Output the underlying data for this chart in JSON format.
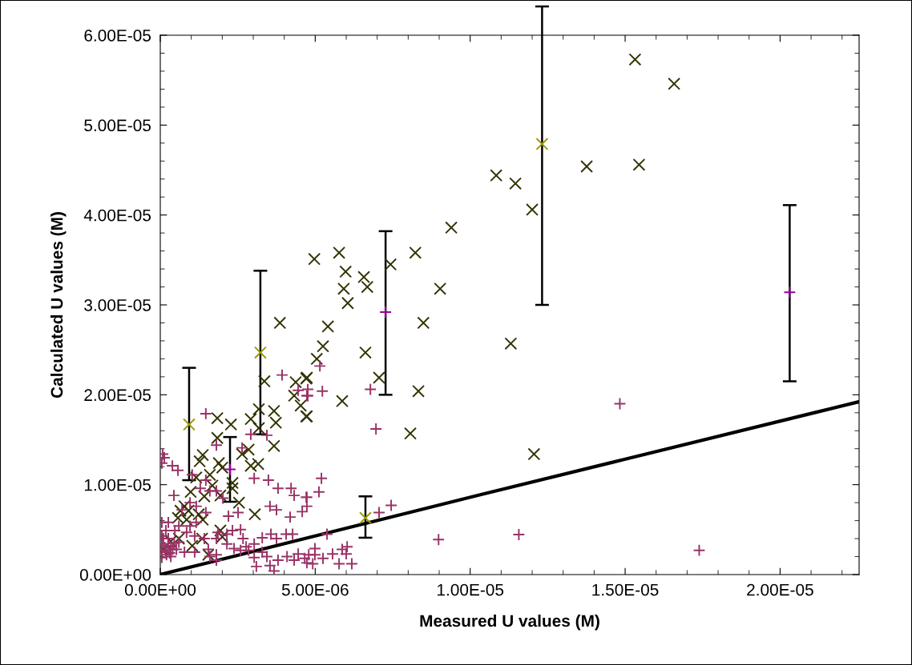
{
  "chart_data": {
    "type": "scatter",
    "xlabel": "Measured U values (M)",
    "ylabel": "Calculated U values (M)",
    "xlim": [
      0,
      2.255e-05
    ],
    "ylim": [
      0,
      6e-05
    ],
    "xticks": [
      {
        "value": 0,
        "label": "0.00E+00"
      },
      {
        "value": 5e-06,
        "label": "5.00E-06"
      },
      {
        "value": 1e-05,
        "label": "1.00E-05"
      },
      {
        "value": 1.5e-05,
        "label": "1.50E-05"
      },
      {
        "value": 2e-05,
        "label": "2.00E-05"
      }
    ],
    "yticks": [
      {
        "value": 0,
        "label": "0.00E+00"
      },
      {
        "value": 1e-05,
        "label": "1.00E-05"
      },
      {
        "value": 2e-05,
        "label": "2.00E-05"
      },
      {
        "value": 3e-05,
        "label": "3.00E-05"
      },
      {
        "value": 4e-05,
        "label": "4.00E-05"
      },
      {
        "value": 5e-05,
        "label": "5.00E-05"
      },
      {
        "value": 6e-05,
        "label": "6.00E-05"
      }
    ],
    "grid": false,
    "series": [
      {
        "color": "#333300",
        "marker": "x",
        "x": [
          1.532e-05,
          1.658e-05,
          1.376e-05,
          1.545e-05,
          1.084e-05,
          1.146e-05,
          1.2e-05,
          1.131e-05,
          1.206e-05,
          4.97e-06,
          5.77e-06,
          5.98e-06,
          5.92e-06,
          6.05e-06,
          6.57e-06,
          6.68e-06,
          7.43e-06,
          8.23e-06,
          9.39e-06,
          9.03e-06,
          8.49e-06,
          5.41e-06,
          5.25e-06,
          5.05e-06,
          6.62e-06,
          7.06e-06,
          4.73e-06,
          8.33e-06,
          5.87e-06,
          4.73e-06,
          8.07e-06,
          3.86e-06,
          3.36e-06,
          4.37e-06,
          4.71e-06,
          4.32e-06,
          4.53e-06,
          4.71e-06,
          3.18e-06,
          3.67e-06,
          1.84e-06,
          2.28e-06,
          2.92e-06,
          3.73e-06,
          3.18e-06,
          1.84e-06,
          3.67e-06,
          2.85e-06,
          2.64e-06,
          1.37e-06,
          1.27e-06,
          1.89e-06,
          2e-06,
          2.92e-06,
          3.16e-06,
          1.6e-06,
          1.16e-06,
          1.68e-06,
          2.33e-06,
          2.33e-06,
          9.8e-07,
          1.42e-06,
          1.94e-06,
          2.54e-06,
          7.8e-07,
          9.1e-07,
          1.24e-06,
          6.5e-07,
          3.05e-06,
          5.7e-07,
          8.5e-07,
          1.37e-06,
          1.94e-06,
          2e-06,
          1.35e-06,
          6e-07,
          3.4e-07,
          1.55e-06,
          1.03e-06,
          8e-08
        ],
        "values": [
          5.73e-05,
          5.46e-05,
          4.54e-05,
          4.56e-05,
          4.44e-05,
          4.35e-05,
          4.06e-05,
          2.57e-05,
          1.34e-05,
          3.51e-05,
          3.58e-05,
          3.37e-05,
          3.18e-05,
          3.02e-05,
          3.31e-05,
          3.2e-05,
          3.45e-05,
          3.58e-05,
          3.86e-05,
          3.18e-05,
          2.8e-05,
          2.76e-05,
          2.54e-05,
          2.4e-05,
          2.47e-05,
          2.19e-05,
          2.19e-05,
          2.04e-05,
          1.93e-05,
          1.76e-05,
          1.57e-05,
          2.8e-05,
          2.15e-05,
          2.14e-05,
          2.18e-05,
          1.99e-05,
          1.88e-05,
          1.76e-05,
          1.84e-05,
          1.82e-05,
          1.74e-05,
          1.67e-05,
          1.73e-05,
          1.69e-05,
          1.63e-05,
          1.52e-05,
          1.43e-05,
          1.39e-05,
          1.34e-05,
          1.33e-05,
          1.26e-05,
          1.24e-05,
          1.19e-05,
          1.21e-05,
          1.23e-05,
          1.11e-05,
          1.08e-05,
          9.9e-06,
          1.02e-05,
          9.6e-06,
          9.2e-06,
          8.7e-06,
          8.8e-06,
          8e-06,
          7.6e-06,
          7.1e-06,
          6.7e-06,
          7.1e-06,
          6.7e-06,
          6.3e-06,
          6.1e-06,
          6.1e-06,
          4.9e-06,
          4.2e-06,
          4e-06,
          4e-06,
          3.7e-06,
          2.2e-06,
          3.2e-06,
          2.8e-06
        ]
      },
      {
        "color": "#993366",
        "marker": "cross",
        "x": [
          1.483e-05,
          1.157e-05,
          1.739e-05,
          5.15e-06,
          4.76e-06,
          5.23e-06,
          6.78e-06,
          4.76e-06,
          6.96e-06,
          5.2e-06,
          5.12e-06,
          4.73e-06,
          4.73e-06,
          7.06e-06,
          7.45e-06,
          8.98e-06,
          5.38e-06,
          4.99e-06,
          4.79e-06,
          4.99e-06,
          5.25e-06,
          5.56e-06,
          5.87e-06,
          6.03e-06,
          6e-06,
          4.92e-06,
          5.77e-06,
          6.18e-06,
          4.73e-06,
          5e-08,
          8e-08,
          1.3e-07,
          5.7e-07,
          3.9e-07,
          1.47e-06,
          1.81e-06,
          2.92e-06,
          2.64e-06,
          3.93e-06,
          4.45e-06,
          4.73e-06,
          3.44e-06,
          3.03e-06,
          3.49e-06,
          3.8e-06,
          4.22e-06,
          4.32e-06,
          4.71e-06,
          3.54e-06,
          3.75e-06,
          4.19e-06,
          4.58e-06,
          4.4e-07,
          1.03e-06,
          1.47e-06,
          1.6e-06,
          1.29e-06,
          1.81e-06,
          2.02e-06,
          9.6e-07,
          7e-07,
          1.16e-06,
          1.47e-06,
          2.2e-06,
          2.51e-06,
          2.59e-06,
          2.33e-06,
          2.15e-06,
          1.86e-06,
          1.81e-06,
          1.42e-06,
          1.11e-06,
          8.5e-07,
          9.6e-07,
          1.16e-06,
          6e-07,
          2.6e-07,
          5e-08,
          1.8e-07,
          4.7e-07,
          5e-08,
          2.6e-07,
          6e-07,
          5e-08,
          3.4e-07,
          5e-08,
          1.8e-07,
          5.2e-07,
          5e-08,
          3.4e-07,
          7.8e-07,
          1.11e-06,
          1.55e-06,
          1.81e-06,
          2.15e-06,
          2.38e-06,
          2.67e-06,
          2.77e-06,
          3.03e-06,
          3.29e-06,
          3.57e-06,
          3.75e-06,
          4.06e-06,
          4.27e-06,
          2.59e-06,
          2.85e-06,
          3.03e-06,
          3.29e-06,
          3.44e-06,
          3.8e-06,
          3.54e-06,
          4.09e-06,
          4.45e-06,
          4.32e-06,
          4.66e-06,
          3.1e-06,
          3.67e-06,
          1.81e-06,
          1.6e-06,
          1.5e-07,
          3e-07,
          4.5e-07,
          2e-07,
          4e-07,
          1e-07,
          2.5e-07
        ],
        "values": [
          1.9e-05,
          4.45e-06,
          2.7e-06,
          2.32e-05,
          2.06e-05,
          2.04e-05,
          2.06e-05,
          1.99e-05,
          1.62e-05,
          1.07e-05,
          9.2e-06,
          8.6e-06,
          7.6e-06,
          6.9e-06,
          7.7e-06,
          3.9e-06,
          4.5e-06,
          2.9e-06,
          2.2e-06,
          2.2e-06,
          1.8e-06,
          2.3e-06,
          2.8e-06,
          3.1e-06,
          2.3e-06,
          1.2e-06,
          1.2e-06,
          1.2e-06,
          1.3e-06,
          1.24e-05,
          1.34e-05,
          1.3e-05,
          1.16e-05,
          1.21e-05,
          1.79e-05,
          1.44e-05,
          1.56e-05,
          1.41e-05,
          2.22e-05,
          2.05e-05,
          1.99e-05,
          1.55e-05,
          1.07e-05,
          1.05e-05,
          9.6e-06,
          9.6e-06,
          8.8e-06,
          8.6e-06,
          7.6e-06,
          7.2e-06,
          6.4e-06,
          7e-06,
          8.8e-06,
          1.11e-05,
          1.05e-05,
          9.3e-06,
          9.6e-06,
          9.3e-06,
          8.5e-06,
          8e-06,
          7.2e-06,
          7.6e-06,
          6.9e-06,
          6.5e-06,
          6.9e-06,
          5e-06,
          4.9e-06,
          4.5e-06,
          4.7e-06,
          4e-06,
          4e-06,
          4.3e-06,
          4.7e-06,
          5.4e-06,
          5.8e-06,
          5.4e-06,
          5.8e-06,
          5.8e-06,
          4.9e-06,
          4.9e-06,
          4.3e-06,
          4e-06,
          3.6e-06,
          3.4e-06,
          3.1e-06,
          2.7e-06,
          2.5e-06,
          2.8e-06,
          1.9e-06,
          2e-06,
          2.5e-06,
          2.5e-06,
          2.8e-06,
          2.2e-06,
          3.4e-06,
          2.9e-06,
          4e-06,
          3.1e-06,
          3.4e-06,
          4.1e-06,
          4.5e-06,
          4e-06,
          4.5e-06,
          4.5e-06,
          2.7e-06,
          2.7e-06,
          1.9e-06,
          2.5e-06,
          2e-06,
          1.6e-06,
          1e-06,
          2e-06,
          2.3e-06,
          1.6e-06,
          1.8e-06,
          9e-07,
          4e-07,
          1.6e-06,
          2e-06,
          3e-06,
          2.4e-06,
          3.5e-06,
          2.2e-06,
          2.8e-06,
          4e-06,
          3.2e-06
        ]
      },
      {
        "color": "#999900",
        "marker": "x",
        "x": [
          9.3e-07,
          3.23e-06,
          6.62e-06,
          1.232e-05
        ],
        "values": [
          1.67e-05,
          2.47e-05,
          6.3e-06,
          4.79e-05
        ],
        "errors": [
          [
            1.05e-05,
            2.3e-05
          ],
          [
            1.56e-05,
            3.38e-05
          ],
          [
            4.1e-06,
            8.7e-06
          ],
          [
            3e-05,
            6.32e-05
          ]
        ]
      },
      {
        "color": "#990099",
        "marker": "cross",
        "x": [
          2.25e-06,
          7.27e-06,
          2.031e-05
        ],
        "values": [
          1.17e-05,
          2.92e-05,
          3.14e-05
        ],
        "errors": [
          [
            8.1e-06,
            1.53e-05
          ],
          [
            2e-05,
            3.82e-05
          ],
          [
            2.15e-05,
            4.11e-05
          ]
        ]
      },
      {
        "type": "line",
        "color": "#000000",
        "marker": "none",
        "line_style": "solid",
        "x": [
          0,
          4.66e-06,
          1.035e-05,
          1.498e-05,
          2.255e-05
        ],
        "values": [
          0,
          4e-06,
          8.9e-06,
          1.282e-05,
          1.923e-05
        ]
      }
    ]
  }
}
